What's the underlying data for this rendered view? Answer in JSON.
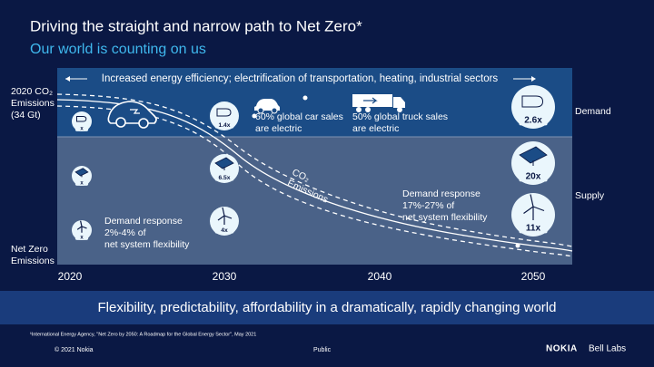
{
  "header": {
    "title": "Driving the straight and narrow path to Net Zero*",
    "subtitle": "Our world is counting on us"
  },
  "left_labels": {
    "start": [
      "2020 CO₂",
      "Emissions",
      "(34 Gt)"
    ],
    "end": [
      "Net Zero",
      "Emissions"
    ]
  },
  "banner": "Increased energy efficiency; electrification of transportation, heating, industrial sectors",
  "annotations": [
    [
      "60% global car sales",
      "are electric"
    ],
    [
      "50% global truck sales",
      "are electric"
    ],
    [
      "Demand response",
      "17%-27% of",
      "net system flexibility"
    ],
    [
      "Demand response",
      "2%-4% of",
      "net system flexibility"
    ]
  ],
  "bands": [
    "Demand",
    "Supply"
  ],
  "curve_label": [
    "CO₂",
    "Emissions"
  ],
  "multipliers": [
    [
      "x",
      "x",
      "x"
    ],
    [
      "1.4x",
      "6.5x",
      "4x"
    ],
    [
      "2.6x",
      "20x",
      "11x"
    ]
  ],
  "x_axis": [
    "2020",
    "2030",
    "2040",
    "2050"
  ],
  "tagline": "Flexibility, predictability, affordability in a dramatically, rapidly changing world",
  "footnote": "¹International Energy Agency, \"Net Zero by 2050: A Roadmap for the Global Energy Sector\", May 2021",
  "footer": {
    "copyright": "© 2021 Nokia",
    "classification": "Public",
    "brand": "NOKIA",
    "lab": "Bell Labs"
  }
}
